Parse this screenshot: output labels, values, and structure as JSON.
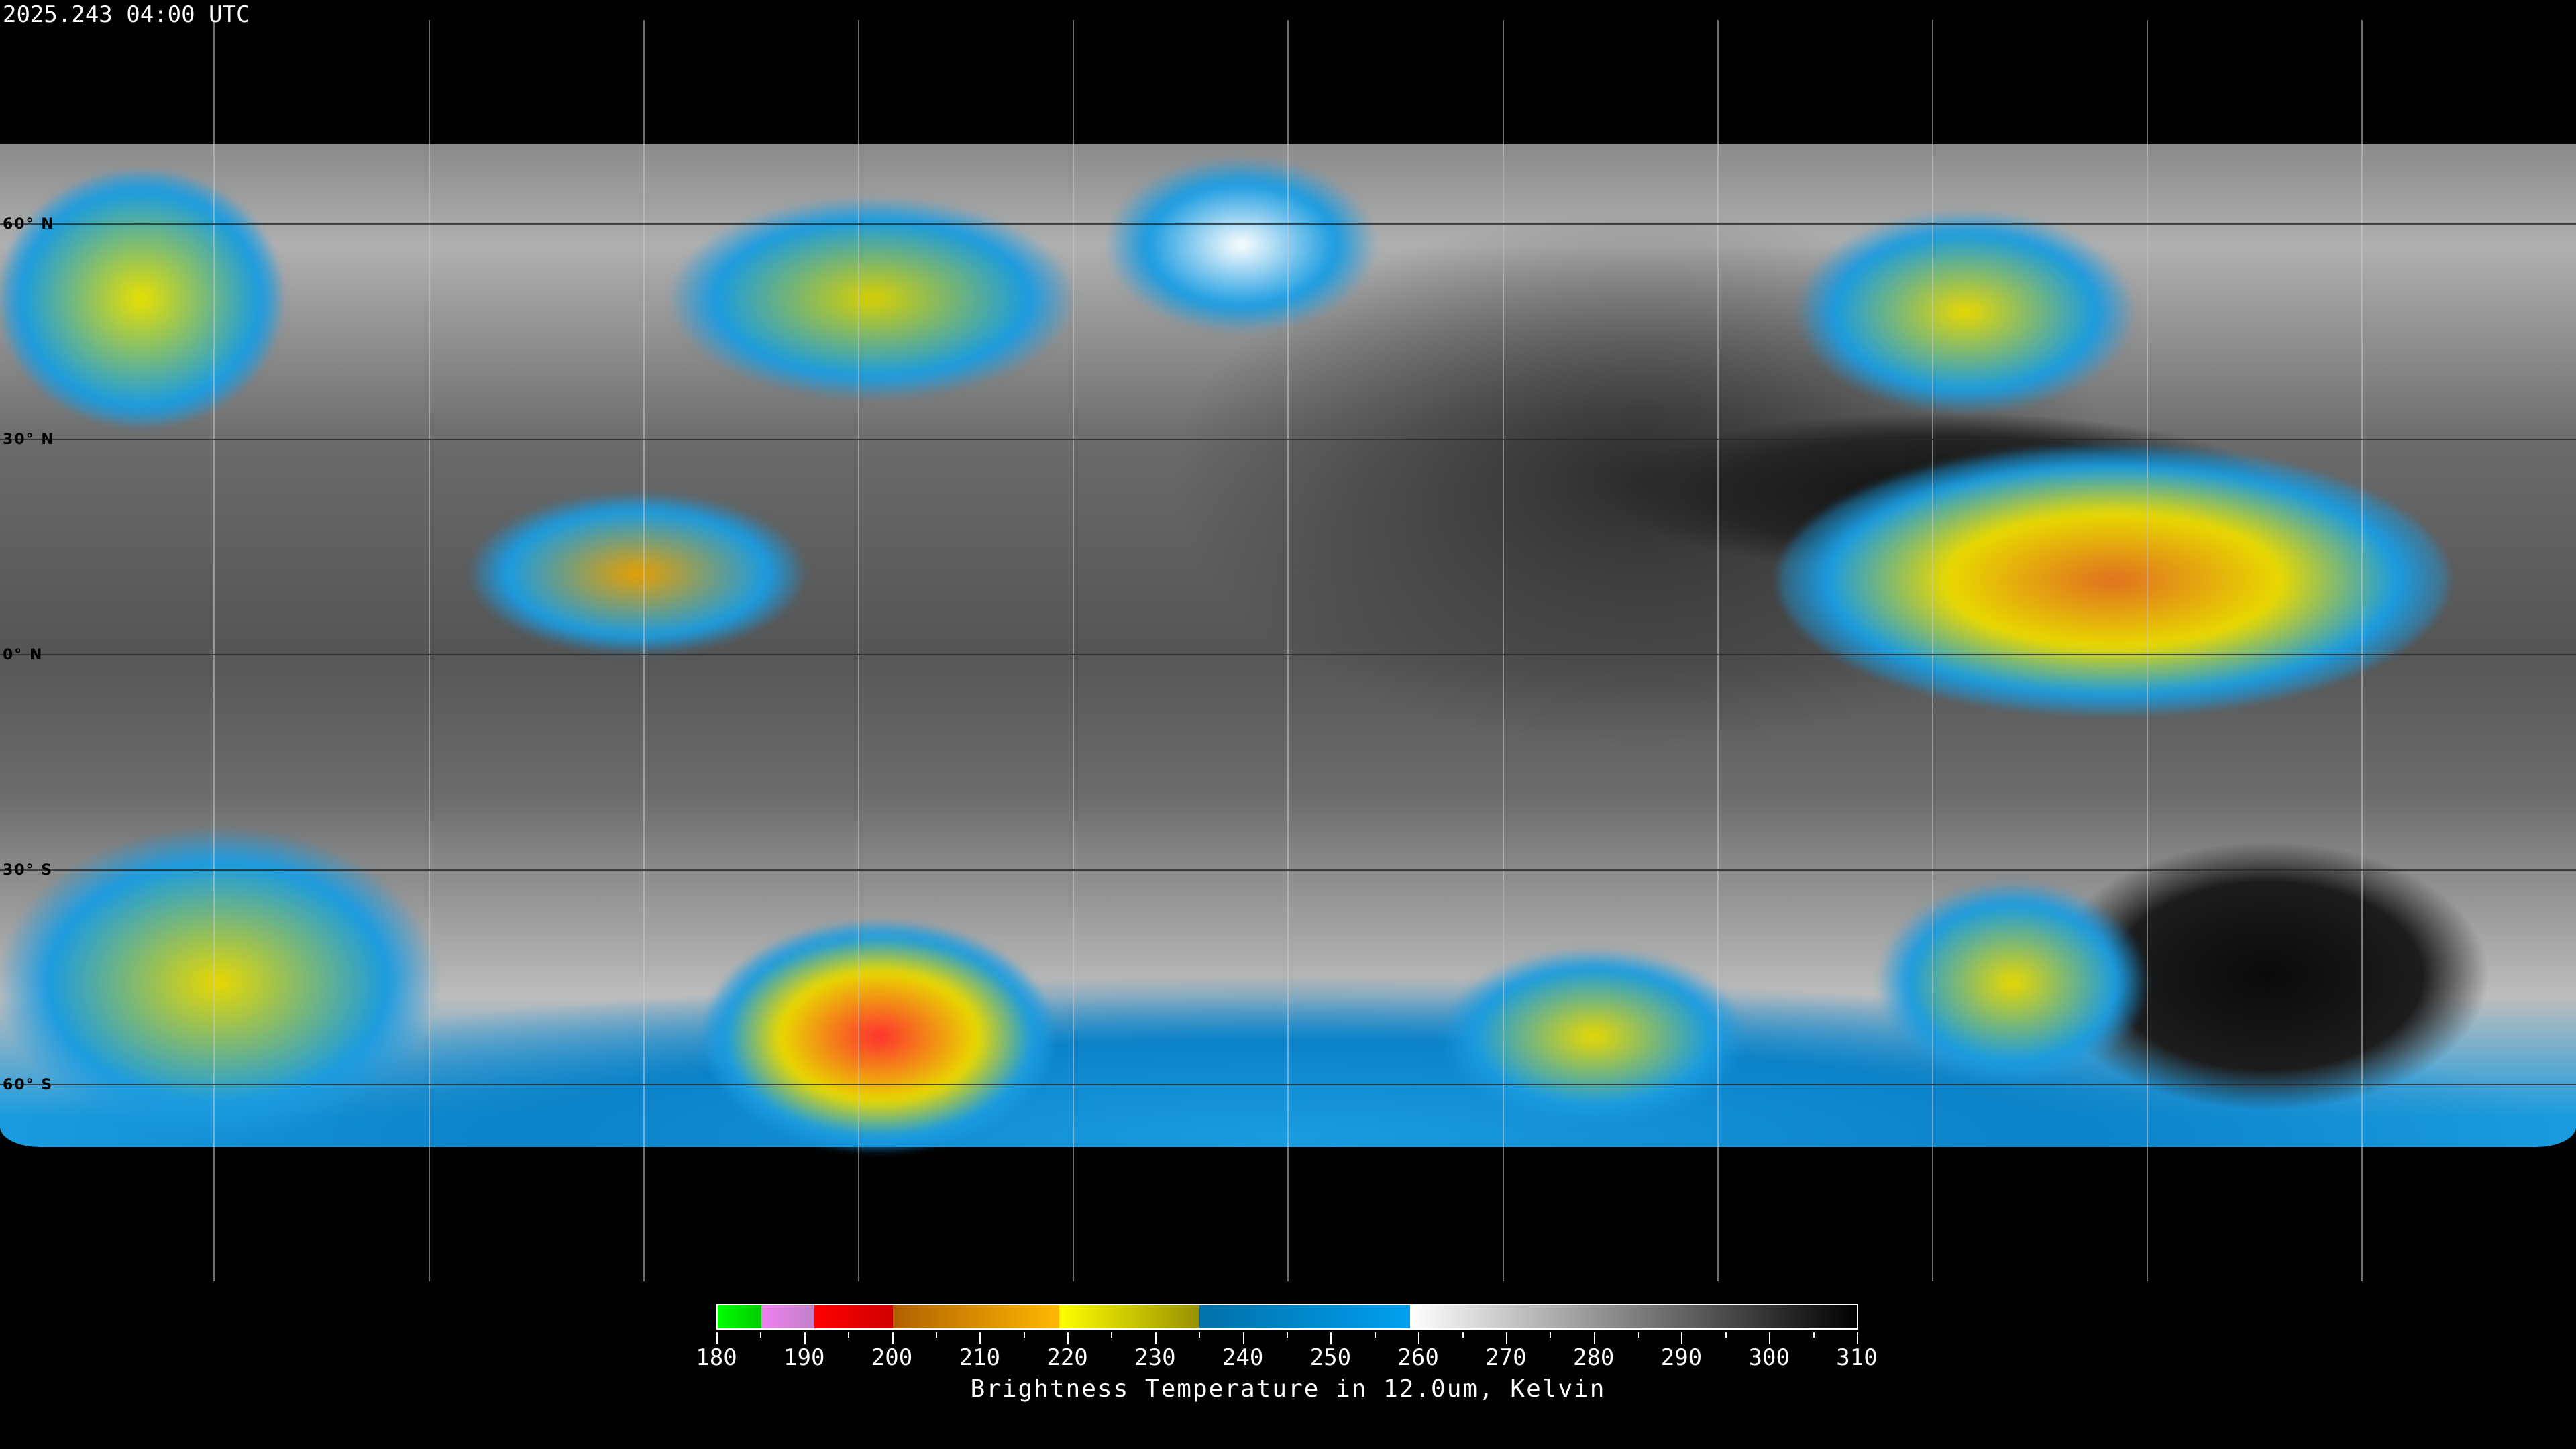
{
  "header": {
    "timestamp": "2025.243 04:00 UTC"
  },
  "map": {
    "projection": "equirectangular",
    "latitude_labels": [
      "60° N",
      "30° N",
      "0° N",
      "30° S",
      "60° S"
    ],
    "grid_spacing_degrees": 30,
    "colors": {
      "background": "#000000",
      "gridline": "#c8c8c8",
      "coastline": "#ffffff"
    }
  },
  "colorbar": {
    "title": "Brightness Temperature in 12.0um, Kelvin",
    "tick_labels": [
      "180",
      "190",
      "200",
      "210",
      "220",
      "230",
      "240",
      "250",
      "260",
      "270",
      "280",
      "290",
      "300",
      "310"
    ],
    "range": [
      180,
      310
    ],
    "segments": [
      {
        "from": 180,
        "to": 185,
        "colors": [
          "#00ff00",
          "#00cc00"
        ]
      },
      {
        "from": 185,
        "to": 191,
        "colors": [
          "#f080f0",
          "#c080c8"
        ]
      },
      {
        "from": 191,
        "to": 200,
        "colors": [
          "#ff0000",
          "#d00000"
        ]
      },
      {
        "from": 200,
        "to": 219,
        "colors": [
          "#b06000",
          "#ffb800"
        ]
      },
      {
        "from": 219,
        "to": 235,
        "colors": [
          "#ffff00",
          "#989000"
        ]
      },
      {
        "from": 235,
        "to": 259,
        "colors": [
          "#0070a8",
          "#00a0f0"
        ]
      },
      {
        "from": 259,
        "to": 310,
        "colors": [
          "#ffffff",
          "#000000"
        ]
      }
    ]
  }
}
